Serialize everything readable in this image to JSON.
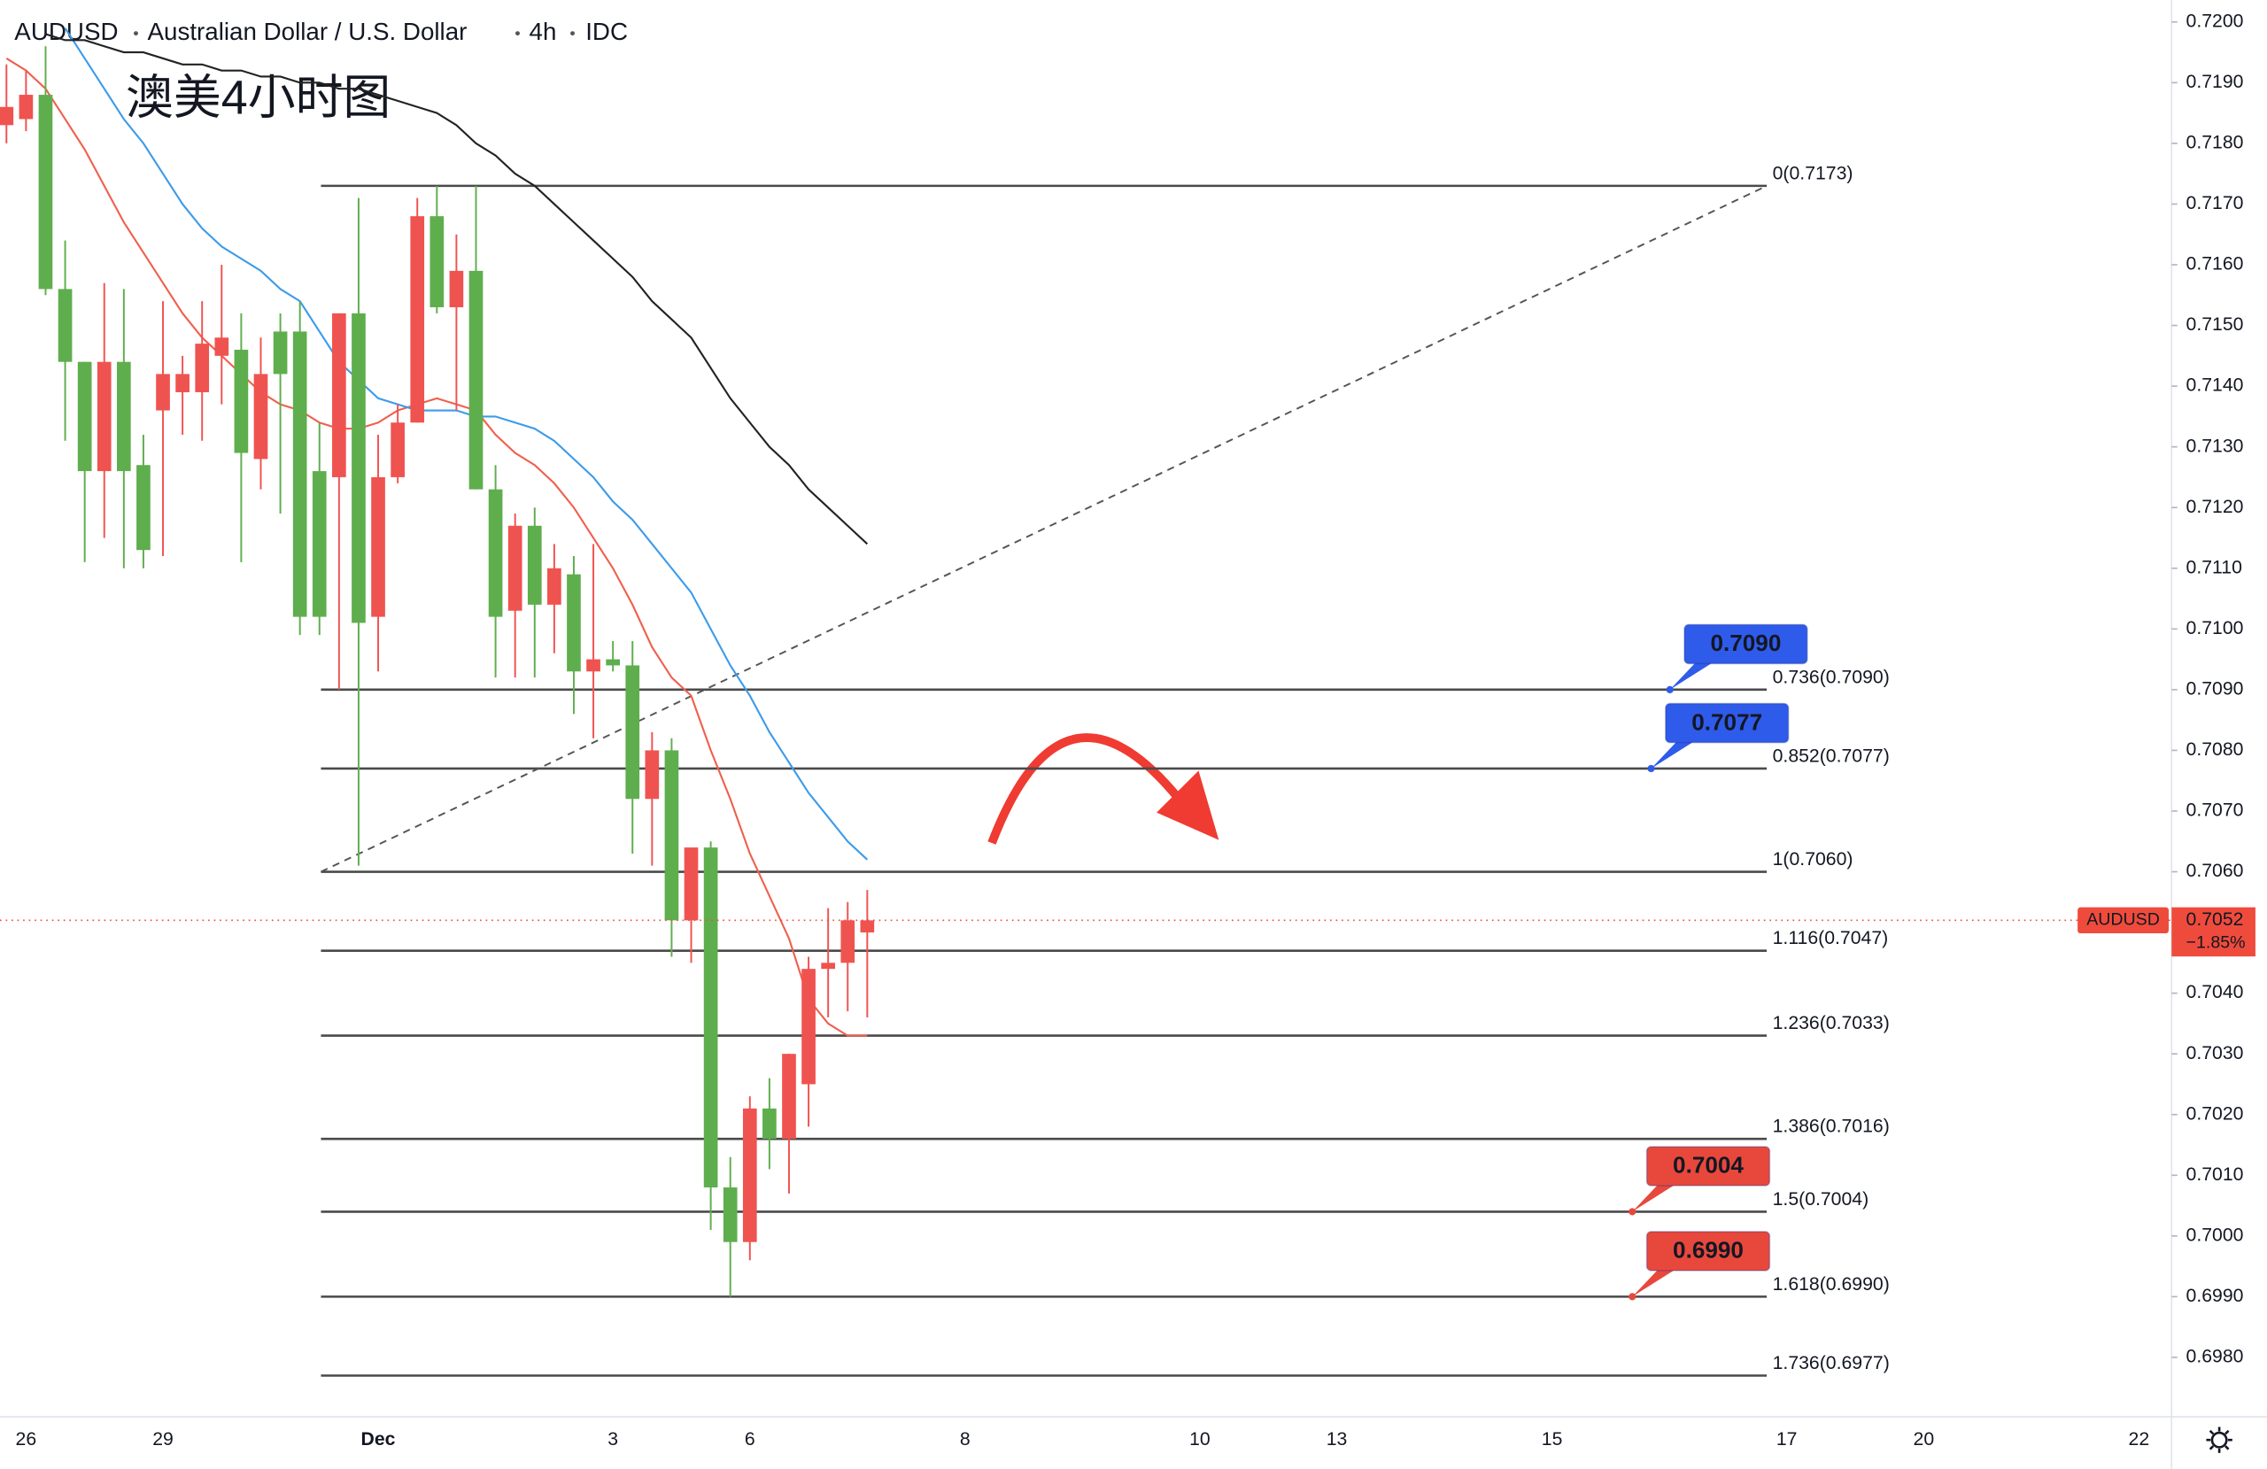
{
  "chart_data": {
    "type": "candlestick",
    "symbol": "AUDUSD",
    "name": "Australian Dollar / U.S. Dollar",
    "interval": "4h",
    "source": "IDC",
    "annotation": "澳美4小时图",
    "categories": [
      null,
      "26",
      null,
      null,
      null,
      null,
      null,
      null,
      "29",
      null,
      null,
      null,
      null,
      null,
      null,
      null,
      null,
      null,
      null,
      "Dec",
      null,
      null,
      null,
      null,
      null,
      null,
      null,
      null,
      null,
      null,
      null,
      "3",
      null,
      null,
      null,
      null,
      null,
      null,
      "6",
      null,
      null,
      null,
      null,
      null,
      null,
      null,
      null,
      null,
      null,
      "8",
      null,
      null,
      null,
      null,
      null,
      null,
      null,
      null,
      null,
      null,
      null,
      "10",
      null,
      null,
      null,
      null,
      null,
      null,
      "13",
      null,
      null,
      null,
      null,
      null,
      null,
      null,
      null,
      null,
      null,
      "15",
      null,
      null,
      null,
      null,
      null,
      null,
      null,
      null,
      null,
      null,
      null,
      "17",
      null,
      null,
      null,
      null,
      null,
      null,
      "20",
      null,
      null,
      null,
      null,
      null,
      null,
      null,
      null,
      null,
      null,
      "22",
      null
    ],
    "open": [
      0.7183,
      0.7184,
      0.7188,
      0.7156,
      0.7144,
      0.7126,
      0.7144,
      0.7127,
      0.7136,
      0.7139,
      0.7139,
      0.7145,
      0.7146,
      0.7128,
      0.7149,
      0.7149,
      0.7126,
      0.7125,
      0.7152,
      0.7102,
      0.7125,
      0.7134,
      0.7168,
      0.7153,
      0.7159,
      0.7123,
      0.7103,
      0.7117,
      0.7104,
      0.7109,
      0.7093,
      0.7095,
      0.7094,
      0.7072,
      0.708,
      0.7052,
      0.7064,
      0.7008,
      0.6999,
      0.7021,
      0.7016,
      0.7025,
      0.7044,
      0.7045,
      0.705,
      null,
      null,
      null,
      null,
      null,
      null,
      null,
      null,
      null,
      null,
      null,
      null,
      null,
      null,
      null,
      null,
      null,
      null,
      null,
      null,
      null,
      null,
      null,
      null,
      null,
      null,
      null,
      null,
      null,
      null,
      null,
      null,
      null,
      null,
      null,
      null,
      null,
      null,
      null,
      null,
      null,
      null,
      null,
      null,
      null,
      null,
      null,
      null,
      null,
      null,
      null,
      null,
      null,
      null,
      null,
      null,
      null,
      null,
      null,
      null,
      null,
      null,
      null,
      null,
      null,
      null
    ],
    "high": [
      0.7193,
      0.7192,
      0.7196,
      0.7164,
      0.7144,
      0.7157,
      0.7156,
      0.7132,
      0.7154,
      0.7145,
      0.7154,
      0.716,
      0.7152,
      0.7148,
      0.7152,
      0.7154,
      0.7134,
      0.7152,
      0.7171,
      0.7132,
      0.7137,
      0.7171,
      0.7173,
      0.7165,
      0.7173,
      0.7127,
      0.7119,
      0.712,
      0.7114,
      0.7112,
      0.7114,
      0.7098,
      0.7098,
      0.7083,
      0.7082,
      0.7064,
      0.7065,
      0.7013,
      0.7023,
      0.7026,
      0.703,
      0.7046,
      0.7054,
      0.7055,
      0.7057,
      null,
      null,
      null,
      null,
      null,
      null,
      null,
      null,
      null,
      null,
      null,
      null,
      null,
      null,
      null,
      null,
      null,
      null,
      null,
      null,
      null,
      null,
      null,
      null,
      null,
      null,
      null,
      null,
      null,
      null,
      null,
      null,
      null,
      null,
      null,
      null,
      null,
      null,
      null,
      null,
      null,
      null,
      null,
      null,
      null,
      null,
      null,
      null,
      null,
      null,
      null,
      null,
      null,
      null,
      null,
      null,
      null,
      null,
      null,
      null,
      null,
      null,
      null,
      null,
      null,
      null
    ],
    "low": [
      0.718,
      0.7182,
      0.7155,
      0.7131,
      0.7111,
      0.7115,
      0.711,
      0.711,
      0.7112,
      0.7132,
      0.7131,
      0.7137,
      0.7111,
      0.7123,
      0.7119,
      0.7099,
      0.7099,
      0.709,
      0.7061,
      0.7093,
      0.7124,
      0.7134,
      0.7152,
      0.7136,
      0.7123,
      0.7092,
      0.7092,
      0.7092,
      0.7096,
      0.7086,
      0.7082,
      0.7093,
      0.7063,
      0.7061,
      0.7046,
      0.7045,
      0.7001,
      0.699,
      0.6996,
      0.7011,
      0.7007,
      0.7018,
      0.7036,
      0.7037,
      0.7036,
      null,
      null,
      null,
      null,
      null,
      null,
      null,
      null,
      null,
      null,
      null,
      null,
      null,
      null,
      null,
      null,
      null,
      null,
      null,
      null,
      null,
      null,
      null,
      null,
      null,
      null,
      null,
      null,
      null,
      null,
      null,
      null,
      null,
      null,
      null,
      null,
      null,
      null,
      null,
      null,
      null,
      null,
      null,
      null,
      null,
      null,
      null,
      null,
      null,
      null,
      null,
      null,
      null,
      null,
      null,
      null,
      null,
      null,
      null,
      null,
      null,
      null,
      null,
      null,
      null,
      null
    ],
    "close": [
      0.7186,
      0.7188,
      0.7156,
      0.7144,
      0.7126,
      0.7144,
      0.7126,
      0.7113,
      0.7142,
      0.7142,
      0.7147,
      0.7148,
      0.7129,
      0.7142,
      0.7142,
      0.7102,
      0.7102,
      0.7152,
      0.7101,
      0.7125,
      0.7134,
      0.7168,
      0.7153,
      0.7159,
      0.7123,
      0.7102,
      0.7117,
      0.7104,
      0.711,
      0.7093,
      0.7095,
      0.7094,
      0.7072,
      0.708,
      0.7052,
      0.7064,
      0.7008,
      0.6999,
      0.7021,
      0.7016,
      0.703,
      0.7044,
      0.7045,
      0.7052,
      0.7052,
      null,
      null,
      null,
      null,
      null,
      null,
      null,
      null,
      null,
      null,
      null,
      null,
      null,
      null,
      null,
      null,
      null,
      null,
      null,
      null,
      null,
      null,
      null,
      null,
      null,
      null,
      null,
      null,
      null,
      null,
      null,
      null,
      null,
      null,
      null,
      null,
      null,
      null,
      null,
      null,
      null,
      null,
      null,
      null,
      null,
      null,
      null,
      null,
      null,
      null,
      null,
      null,
      null,
      null,
      null,
      null,
      null,
      null,
      null,
      null,
      null,
      null,
      null,
      null,
      null,
      null
    ],
    "up_color": "#ef5350",
    "down_color": "#5fae4e",
    "lines": [
      {
        "color": "#f0604d",
        "values": [
          0.7194,
          0.7192,
          0.7189,
          0.7184,
          0.7179,
          0.7173,
          0.7167,
          0.7162,
          0.7157,
          0.7152,
          0.7148,
          0.7145,
          0.7142,
          0.7139,
          0.7137,
          0.7136,
          0.7134,
          0.7133,
          0.7133,
          0.7134,
          0.7136,
          0.7137,
          0.7138,
          0.7137,
          0.7136,
          0.7132,
          0.7129,
          0.7127,
          0.7124,
          0.712,
          0.7115,
          0.711,
          0.7104,
          0.7097,
          0.7092,
          0.7089,
          0.708,
          0.7072,
          0.7063,
          0.7056,
          0.7049,
          0.7039,
          0.7035,
          0.7033,
          0.7033,
          null,
          null,
          null,
          null,
          null,
          null,
          null,
          null,
          null,
          null,
          null,
          null,
          null,
          null,
          null,
          null,
          null,
          null,
          null,
          null,
          null,
          null,
          null,
          null,
          null,
          null,
          null,
          null,
          null,
          null,
          null,
          null,
          null,
          null,
          null,
          null,
          null,
          null,
          null,
          null,
          null,
          null,
          null,
          null,
          null,
          null,
          null,
          null,
          null,
          null,
          null,
          null,
          null,
          null,
          null,
          null,
          null,
          null,
          null,
          null,
          null,
          null,
          null,
          null,
          null,
          null
        ]
      },
      {
        "color": "#3d9be9",
        "values": [
          null,
          null,
          null,
          0.7199,
          0.7194,
          0.7189,
          0.7184,
          0.718,
          0.7175,
          0.717,
          0.7166,
          0.7163,
          0.7161,
          0.7159,
          0.7156,
          0.7154,
          0.7149,
          0.7144,
          0.7141,
          0.7138,
          0.7137,
          0.7136,
          0.7136,
          0.7136,
          0.7135,
          0.7135,
          0.7134,
          0.7133,
          0.7131,
          0.7128,
          0.7125,
          0.7121,
          0.7118,
          0.7114,
          0.711,
          0.7106,
          0.71,
          0.7094,
          0.7089,
          0.7083,
          0.7078,
          0.7073,
          0.7069,
          0.7065,
          0.7062,
          null,
          null,
          null,
          null,
          null,
          null,
          null,
          null,
          null,
          null,
          null,
          null,
          null,
          null,
          null,
          null,
          null,
          null,
          null,
          null,
          null,
          null,
          null,
          null,
          null,
          null,
          null,
          null,
          null,
          null,
          null,
          null,
          null,
          null,
          null,
          null,
          null,
          null,
          null,
          null,
          null,
          null,
          null,
          null,
          null,
          null,
          null,
          null,
          null,
          null,
          null,
          null,
          null,
          null,
          null,
          null,
          null,
          null,
          null,
          null,
          null,
          null,
          null,
          null,
          null,
          null
        ]
      },
      {
        "color": "#222222",
        "values": [
          null,
          null,
          0.7198,
          0.7197,
          0.7197,
          0.7196,
          0.7195,
          0.7195,
          0.7194,
          0.7193,
          0.7193,
          0.7192,
          0.7192,
          0.7191,
          0.7191,
          0.719,
          0.719,
          0.7189,
          0.7189,
          0.7188,
          0.7187,
          0.7186,
          0.7185,
          0.7183,
          0.718,
          0.7178,
          0.7175,
          0.7173,
          0.717,
          0.7167,
          0.7164,
          0.7161,
          0.7158,
          0.7154,
          0.7151,
          0.7148,
          0.7143,
          0.7138,
          0.7134,
          0.713,
          0.7127,
          0.7123,
          0.712,
          0.7117,
          0.7114,
          null,
          null,
          null,
          null,
          null,
          null,
          null,
          null,
          null,
          null,
          null,
          null,
          null,
          null,
          null,
          null,
          null,
          null,
          null,
          null,
          null,
          null,
          null,
          null,
          null,
          null,
          null,
          null,
          null,
          null,
          null,
          null,
          null,
          null,
          null,
          null,
          null,
          null,
          null,
          null,
          null,
          null,
          null,
          null,
          null,
          null,
          null,
          null,
          null,
          null,
          null,
          null,
          null,
          null,
          null,
          null,
          null,
          null,
          null,
          null,
          null,
          null,
          null,
          null,
          null,
          null
        ]
      }
    ],
    "ylim": [
      0.69702,
      0.72036
    ],
    "yticks": [
      {
        "value": 0.698,
        "label": "0.6980"
      },
      {
        "value": 0.699,
        "label": "0.6990"
      },
      {
        "value": 0.7,
        "label": "0.7000"
      },
      {
        "value": 0.701,
        "label": "0.7010"
      },
      {
        "value": 0.702,
        "label": "0.7020"
      },
      {
        "value": 0.703,
        "label": "0.7030"
      },
      {
        "value": 0.704,
        "label": "0.7040"
      },
      {
        "value": 0.705,
        "label": "0.7050"
      },
      {
        "value": 0.706,
        "label": "0.7060"
      },
      {
        "value": 0.707,
        "label": "0.7070"
      },
      {
        "value": 0.708,
        "label": "0.7080"
      },
      {
        "value": 0.709,
        "label": "0.7090"
      },
      {
        "value": 0.71,
        "label": "0.7100"
      },
      {
        "value": 0.711,
        "label": "0.7110"
      },
      {
        "value": 0.712,
        "label": "0.7120"
      },
      {
        "value": 0.713,
        "label": "0.7130"
      },
      {
        "value": 0.714,
        "label": "0.7140"
      },
      {
        "value": 0.715,
        "label": "0.7150"
      },
      {
        "value": 0.716,
        "label": "0.7160"
      },
      {
        "value": 0.717,
        "label": "0.7170"
      },
      {
        "value": 0.718,
        "label": "0.7180"
      },
      {
        "value": 0.719,
        "label": "0.7190"
      },
      {
        "value": 0.72,
        "label": "0.7200"
      }
    ],
    "fib_levels": [
      {
        "label": "0(0.7173)",
        "value": 0.7173
      },
      {
        "label": "0.736(0.7090)",
        "value": 0.709
      },
      {
        "label": "0.852(0.7077)",
        "value": 0.7077
      },
      {
        "label": "1(0.7060)",
        "value": 0.706
      },
      {
        "label": "1.116(0.7047)",
        "value": 0.7047
      },
      {
        "label": "1.236(0.7033)",
        "value": 0.7033
      },
      {
        "label": "1.386(0.7016)",
        "value": 0.7016
      },
      {
        "label": "1.5(0.7004)",
        "value": 0.7004
      },
      {
        "label": "1.618(0.6990)",
        "value": 0.699
      },
      {
        "label": "1.736(0.6977)",
        "value": 0.6977
      }
    ],
    "callouts": [
      {
        "label": "0.7090",
        "value": 0.709,
        "color": "#2f5bea"
      },
      {
        "label": "0.7077",
        "value": 0.7077,
        "color": "#2f5bea"
      },
      {
        "label": "0.7004",
        "value": 0.7004,
        "color": "#e8483c"
      },
      {
        "label": "0.6990",
        "value": 0.699,
        "color": "#e8483c"
      }
    ],
    "last_price": {
      "symbol_label": "AUDUSD",
      "value": 0.7052,
      "label": "0.7052",
      "change": "−1.85%",
      "color": "#ef4b3c"
    }
  }
}
